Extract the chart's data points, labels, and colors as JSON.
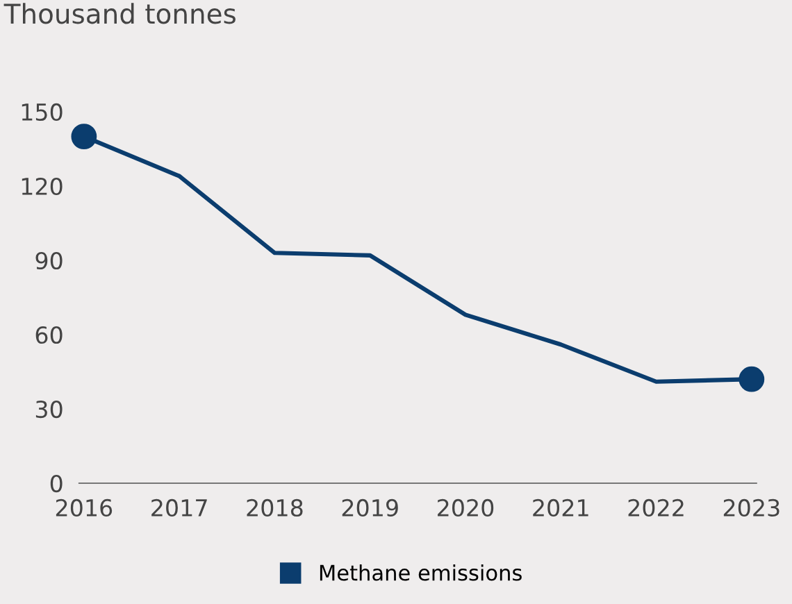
{
  "chart_data": {
    "type": "line",
    "ylabel": "Thousand tonnes",
    "categories": [
      "2016",
      "2017",
      "2018",
      "2019",
      "2020",
      "2021",
      "2022",
      "2023"
    ],
    "series": [
      {
        "name": "Methane emissions",
        "color": "#0b3d6e",
        "values": [
          140,
          124,
          93,
          92,
          68,
          56,
          41,
          42
        ]
      },
      {
        "type": "scatter",
        "color": "#0b3d6e",
        "values": [
          140,
          null,
          null,
          null,
          null,
          null,
          null,
          42
        ]
      }
    ],
    "ylim": [
      0,
      150
    ],
    "yticks": [
      0,
      30,
      60,
      90,
      120,
      150
    ],
    "grid": false,
    "legend": "bottom",
    "line_style": "solid"
  }
}
